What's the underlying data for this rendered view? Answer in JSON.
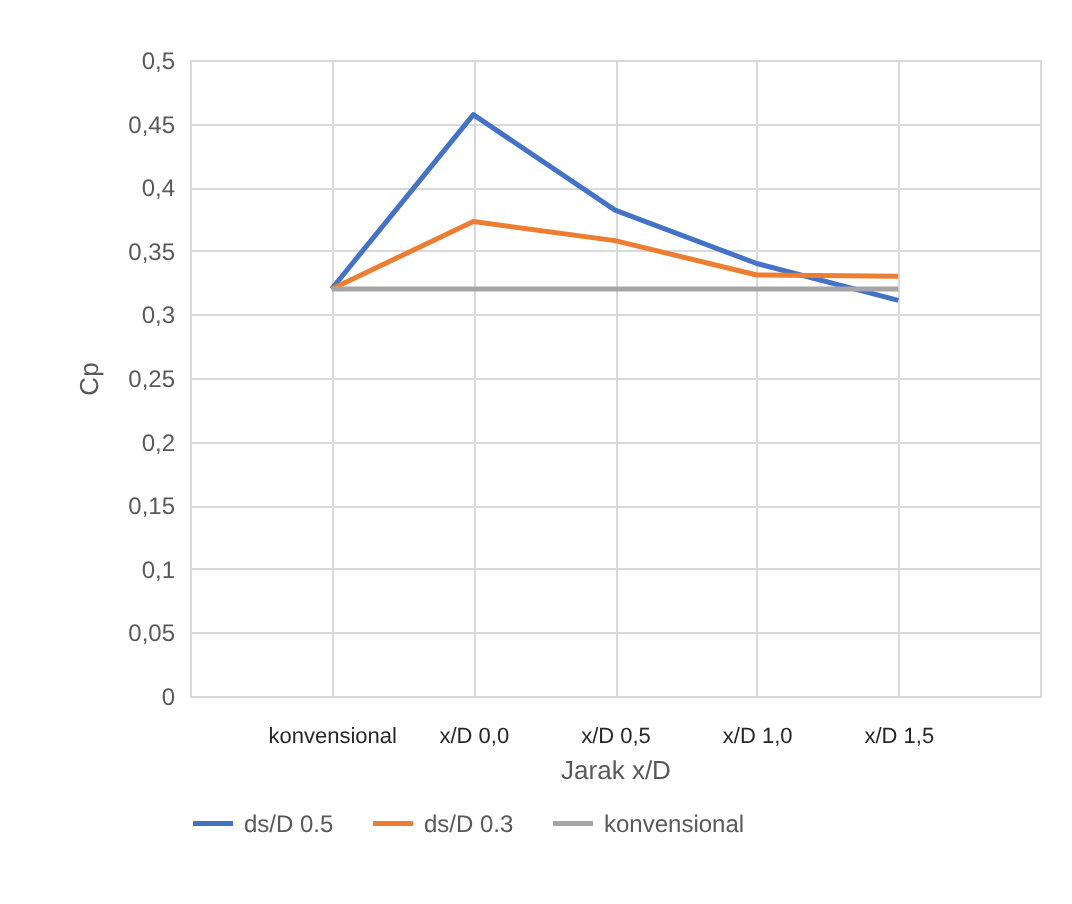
{
  "chart_data": {
    "type": "line",
    "xlabel": "Jarak x/D",
    "ylabel": "Cp",
    "categories": [
      "konvensional",
      "x/D 0,0",
      "x/D 0,5",
      "x/D 1,0",
      "x/D 1,5"
    ],
    "series": [
      {
        "name": "ds/D 0.5",
        "color": "#4472c4",
        "values": [
          0.32,
          0.457,
          0.382,
          0.34,
          0.311
        ]
      },
      {
        "name": "ds/D 0.3",
        "color": "#ed7d31",
        "values": [
          0.32,
          0.373,
          0.358,
          0.331,
          0.33
        ]
      },
      {
        "name": "konvensional",
        "color": "#a5a5a5",
        "values": [
          0.32,
          0.32,
          0.32,
          0.32,
          0.32
        ]
      }
    ],
    "ylim": [
      0,
      0.5
    ],
    "yticks": [
      {
        "value": 0,
        "label": "0"
      },
      {
        "value": 0.05,
        "label": "0,05"
      },
      {
        "value": 0.1,
        "label": "0,1"
      },
      {
        "value": 0.15,
        "label": "0,15"
      },
      {
        "value": 0.2,
        "label": "0,2"
      },
      {
        "value": 0.25,
        "label": "0,25"
      },
      {
        "value": 0.3,
        "label": "0,3"
      },
      {
        "value": 0.35,
        "label": "0,35"
      },
      {
        "value": 0.4,
        "label": "0,4"
      },
      {
        "value": 0.45,
        "label": "0,45"
      },
      {
        "value": 0.5,
        "label": "0,5"
      }
    ],
    "grid": true,
    "legend": "bottom",
    "marker": "none",
    "line_style": "solid"
  }
}
